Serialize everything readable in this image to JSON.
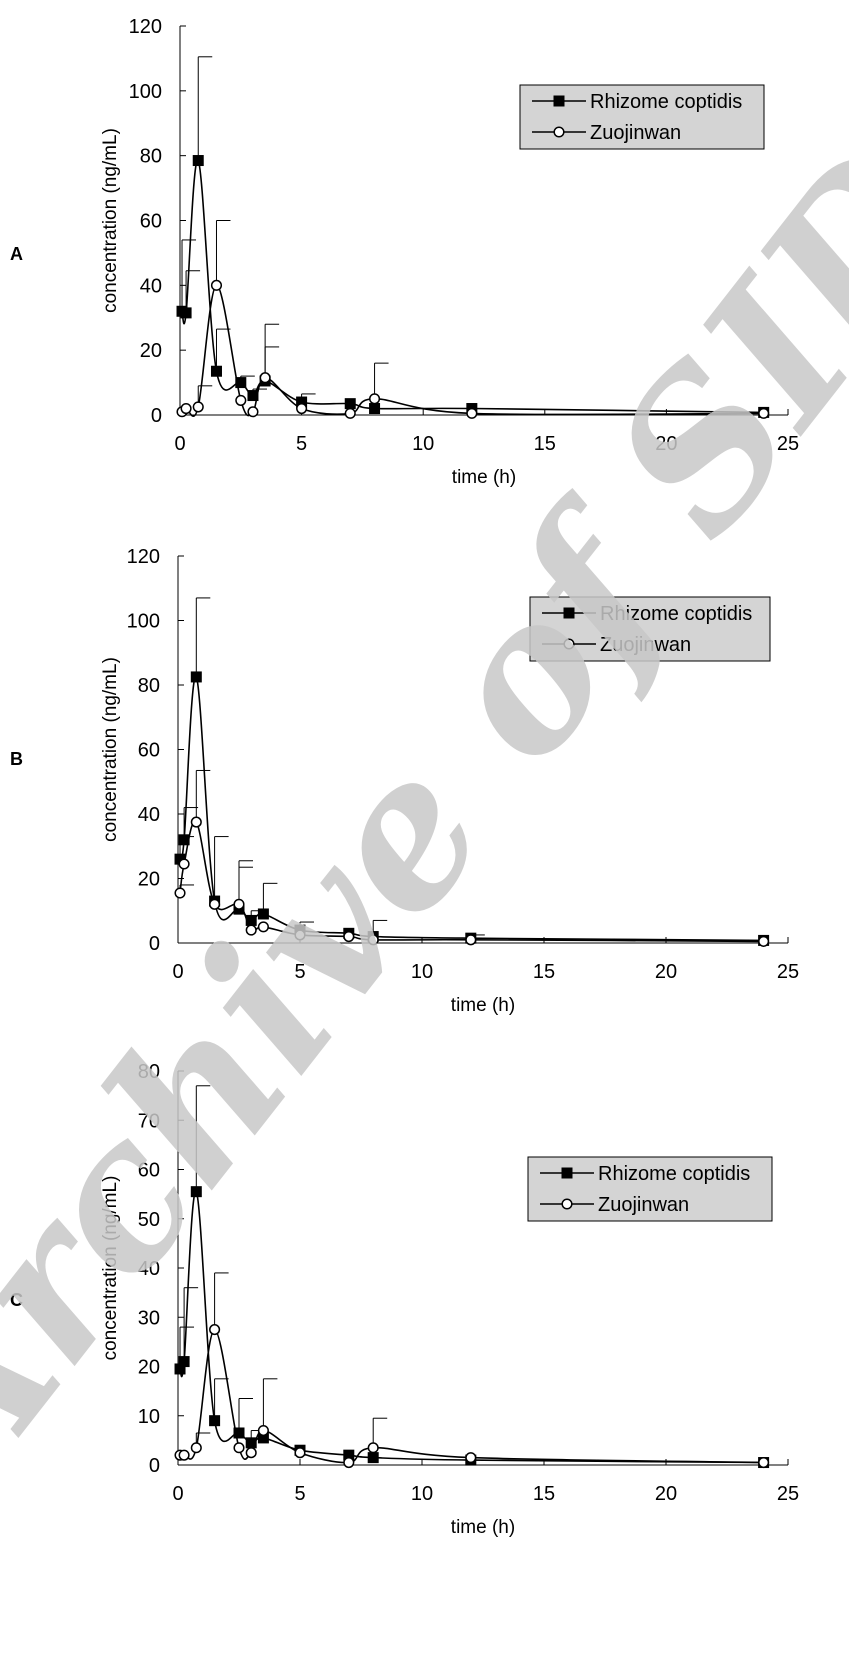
{
  "watermark": "Archive of SID",
  "chart_data": [
    {
      "panel": "A",
      "type": "line",
      "xlabel": "time (h)",
      "ylabel": "concentration (ng/mL)",
      "xlim": [
        0,
        25
      ],
      "ylim": [
        0,
        120
      ],
      "xticks": [
        0,
        5,
        10,
        15,
        20,
        25
      ],
      "yticks": [
        0,
        20,
        40,
        60,
        80,
        100,
        120
      ],
      "legend_position": "top-right",
      "series": [
        {
          "name": "Rhizome coptidis",
          "marker": "filled-square",
          "x": [
            0.083,
            0.25,
            0.75,
            1.5,
            2.5,
            3,
            3.5,
            5,
            7,
            8,
            12,
            24
          ],
          "y": [
            32,
            31.5,
            78.5,
            13.5,
            10,
            6,
            10.5,
            4,
            3.5,
            2,
            2,
            0.8
          ],
          "error": [
            22,
            13,
            32,
            13,
            2,
            2,
            10.5,
            2.5,
            0,
            0,
            0,
            0
          ]
        },
        {
          "name": "Zuojinwan",
          "marker": "open-circle",
          "x": [
            0.083,
            0.25,
            0.75,
            1.5,
            2.5,
            3,
            3.5,
            5,
            7,
            8,
            12,
            24
          ],
          "y": [
            1,
            2,
            2.5,
            40,
            4.5,
            1,
            11.5,
            2,
            0.5,
            5,
            0.5,
            0.5
          ],
          "error": [
            0,
            0,
            6.5,
            20,
            0,
            0,
            16.5,
            0,
            0,
            11,
            0,
            0
          ]
        }
      ]
    },
    {
      "panel": "B",
      "type": "line",
      "xlabel": "time (h)",
      "ylabel": "concentration (ng/mL)",
      "xlim": [
        0,
        25
      ],
      "ylim": [
        0,
        120
      ],
      "xticks": [
        0,
        5,
        10,
        15,
        20,
        25
      ],
      "yticks": [
        0,
        20,
        40,
        60,
        80,
        100,
        120
      ],
      "legend_position": "top-right",
      "series": [
        {
          "name": "Rhizome coptidis",
          "marker": "filled-square",
          "x": [
            0.083,
            0.25,
            0.75,
            1.5,
            2.5,
            3,
            3.5,
            5,
            7,
            8,
            12,
            24
          ],
          "y": [
            26,
            32,
            82.5,
            13,
            10.5,
            7,
            9,
            4,
            3,
            2,
            1.5,
            0.8
          ],
          "error": [
            7,
            10,
            24.5,
            20,
            15,
            3,
            9.5,
            2.5,
            0,
            5,
            1,
            0
          ]
        },
        {
          "name": "Zuojinwan",
          "marker": "open-circle",
          "x": [
            0.083,
            0.25,
            0.75,
            1.5,
            2.5,
            3,
            3.5,
            5,
            7,
            8,
            12,
            24
          ],
          "y": [
            15.5,
            24.5,
            37.5,
            12,
            12,
            4,
            5,
            2.5,
            2,
            1,
            1,
            0.5
          ],
          "error": [
            2.5,
            0,
            16,
            0,
            11.5,
            0,
            0,
            0,
            0,
            0,
            0,
            0
          ]
        }
      ]
    },
    {
      "panel": "C",
      "type": "line",
      "xlabel": "time (h)",
      "ylabel": "concentration (ng/mL)",
      "xlim": [
        0,
        25
      ],
      "ylim": [
        0,
        80
      ],
      "xticks": [
        0,
        5,
        10,
        15,
        20,
        25
      ],
      "yticks": [
        0,
        10,
        20,
        30,
        40,
        50,
        60,
        70,
        80
      ],
      "legend_position": "top-right",
      "series": [
        {
          "name": "Rhizome coptidis",
          "marker": "filled-square",
          "x": [
            0.083,
            0.25,
            0.75,
            1.5,
            2.5,
            3,
            3.5,
            5,
            7,
            8,
            12,
            24
          ],
          "y": [
            19.5,
            21,
            55.5,
            9,
            6.5,
            4.5,
            5.5,
            3,
            2,
            1.5,
            1,
            0.5
          ],
          "error": [
            8.5,
            15,
            21.5,
            8.5,
            7,
            2.5,
            12,
            0,
            0,
            0,
            0,
            0
          ]
        },
        {
          "name": "Zuojinwan",
          "marker": "open-circle",
          "x": [
            0.083,
            0.25,
            0.75,
            1.5,
            2.5,
            3,
            3.5,
            5,
            7,
            8,
            12,
            24
          ],
          "y": [
            2,
            2,
            3.5,
            27.5,
            3.5,
            2.5,
            7,
            2.5,
            0.5,
            3.5,
            1.5,
            0.5
          ],
          "error": [
            0,
            0,
            3,
            11.5,
            0,
            0,
            0,
            0,
            0,
            6,
            0,
            0
          ]
        }
      ]
    }
  ]
}
